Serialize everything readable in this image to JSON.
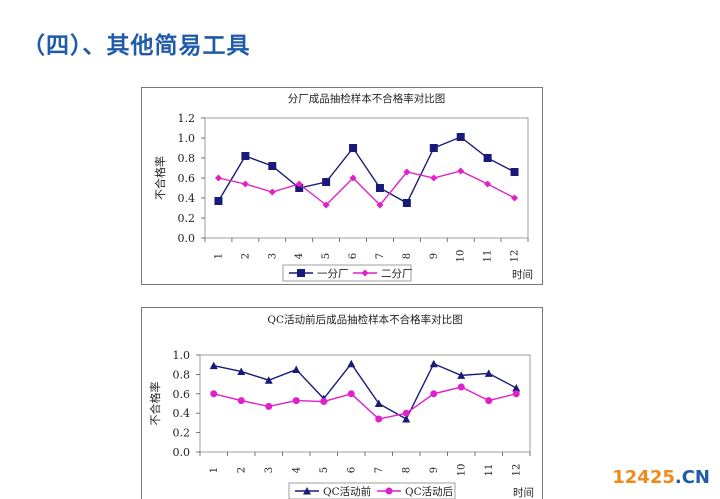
{
  "heading": "（四）、其他简易工具",
  "watermark": {
    "number": "12425",
    "domain": ".CN"
  },
  "chart_data": [
    {
      "type": "line",
      "title": "分厂成品抽检样本不合格率对比图",
      "ylabel": "不合格率",
      "xlabel": "时间",
      "categories": [
        "1",
        "2",
        "3",
        "4",
        "5",
        "6",
        "7",
        "8",
        "9",
        "10",
        "11",
        "12"
      ],
      "ylim": [
        0,
        1.2
      ],
      "yticks": [
        "0.0",
        "0.2",
        "0.4",
        "0.6",
        "0.8",
        "1.0",
        "1.2"
      ],
      "legend_position": "bottom",
      "series": [
        {
          "name": "一分厂",
          "color": "#1a1a7a",
          "marker": "square",
          "values": [
            0.37,
            0.82,
            0.72,
            0.5,
            0.56,
            0.9,
            0.5,
            0.35,
            0.9,
            1.01,
            0.8,
            0.66
          ]
        },
        {
          "name": "二分厂",
          "color": "#e020c8",
          "marker": "diamond",
          "values": [
            0.6,
            0.54,
            0.46,
            0.54,
            0.33,
            0.6,
            0.33,
            0.66,
            0.6,
            0.67,
            0.54,
            0.4
          ]
        }
      ]
    },
    {
      "type": "line",
      "title": "QC活动前后成品抽检样本不合格率对比图",
      "ylabel": "不合格率",
      "xlabel": "时间",
      "categories": [
        "1",
        "2",
        "3",
        "4",
        "5",
        "6",
        "7",
        "8",
        "9",
        "10",
        "11",
        "12"
      ],
      "ylim": [
        0,
        1.0
      ],
      "yticks": [
        "0.0",
        "0.2",
        "0.4",
        "0.6",
        "0.8",
        "1.0"
      ],
      "legend_position": "bottom",
      "series": [
        {
          "name": "QC活动前",
          "color": "#1a1a7a",
          "marker": "triangle",
          "values": [
            0.89,
            0.83,
            0.74,
            0.85,
            0.55,
            0.91,
            0.5,
            0.34,
            0.91,
            0.79,
            0.81,
            0.66
          ]
        },
        {
          "name": "QC活动后",
          "color": "#e020c8",
          "marker": "circle",
          "values": [
            0.6,
            0.53,
            0.47,
            0.53,
            0.52,
            0.6,
            0.34,
            0.4,
            0.6,
            0.67,
            0.53,
            0.6
          ]
        }
      ]
    }
  ]
}
